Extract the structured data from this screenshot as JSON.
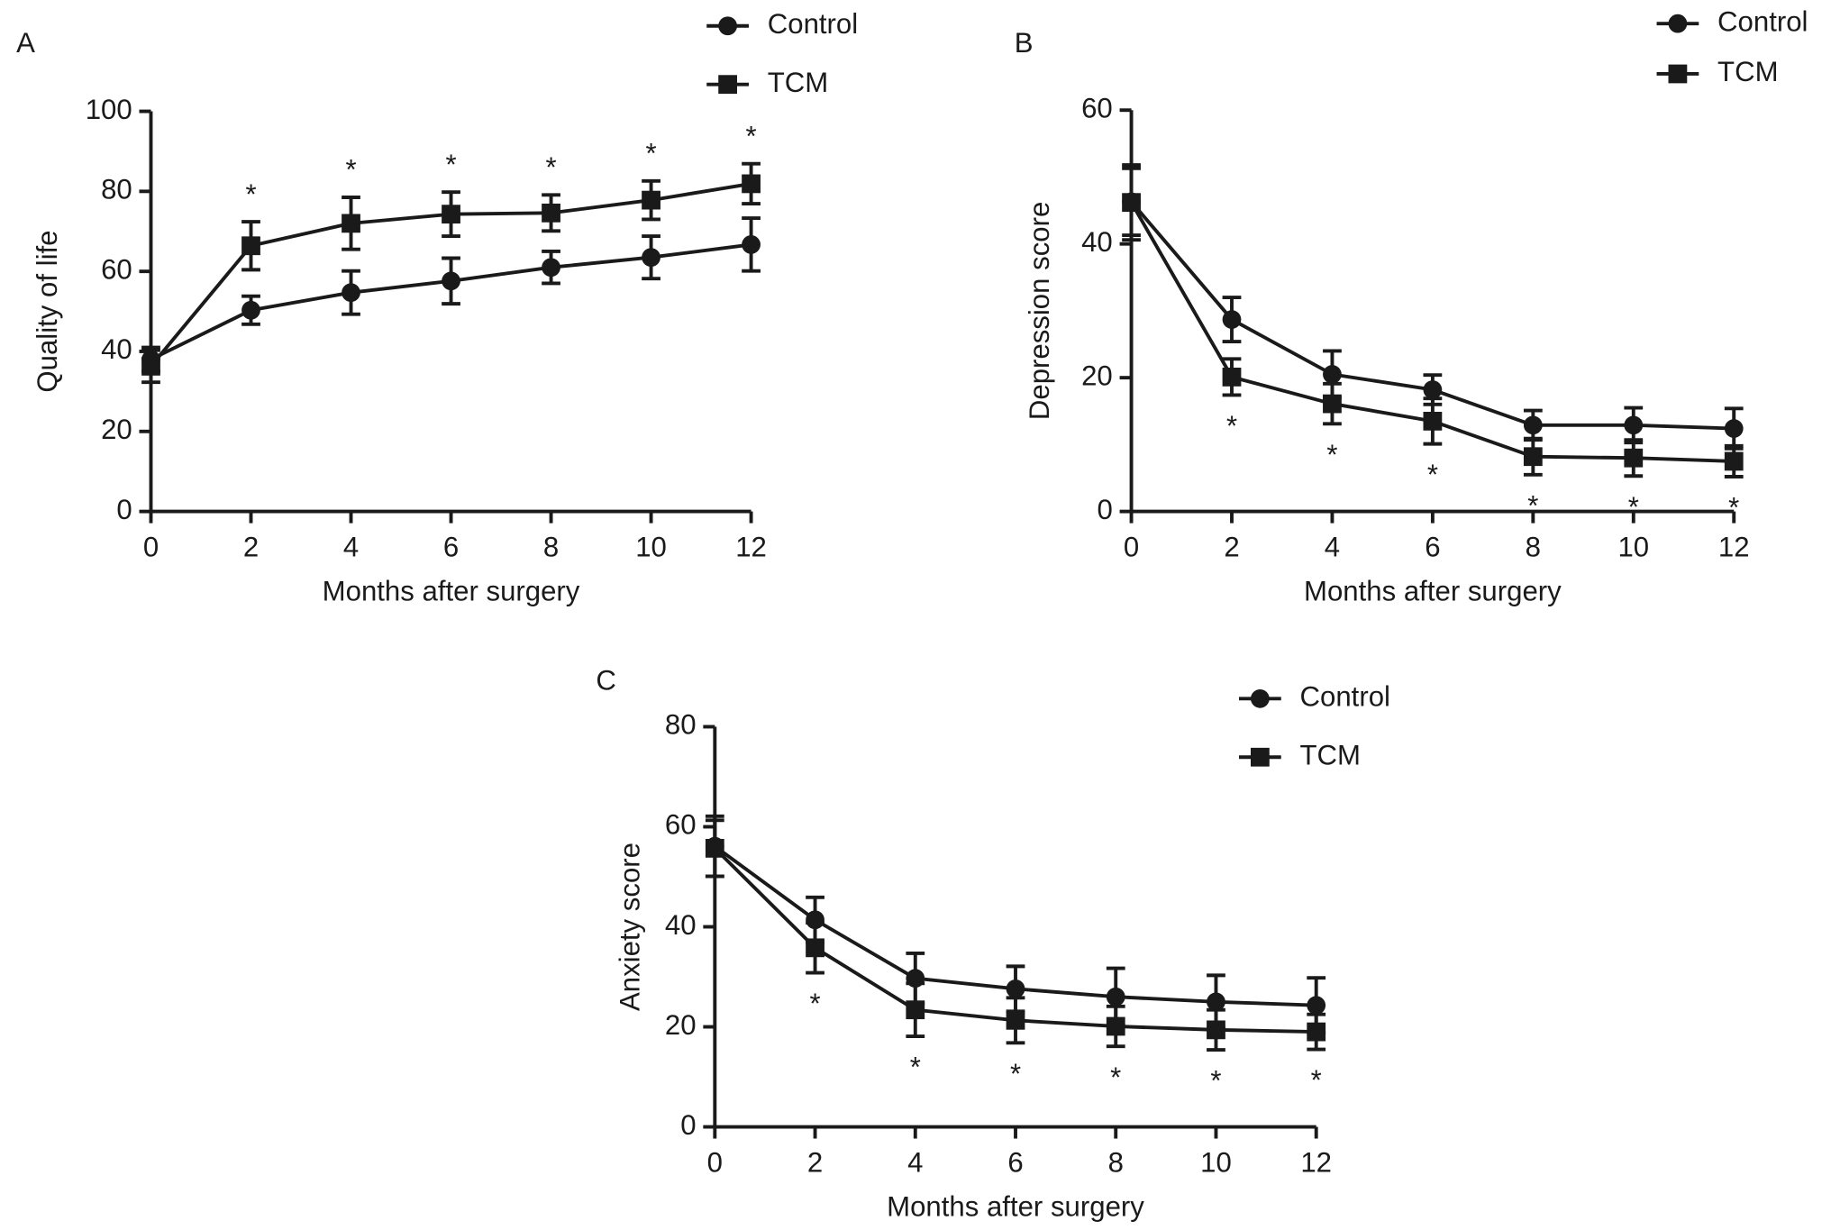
{
  "chart_data": [
    {
      "type": "line",
      "panel": "A",
      "ylabel": "Quality of life",
      "xlabel": "Months after surgery",
      "x": [
        0,
        2,
        4,
        6,
        8,
        10,
        12
      ],
      "xlim": [
        0,
        12
      ],
      "xticks": [
        0,
        2,
        4,
        6,
        8,
        10,
        12
      ],
      "ylim": [
        0,
        100
      ],
      "yticks": [
        0,
        20,
        40,
        60,
        80,
        100
      ],
      "series": [
        {
          "name": "Control",
          "color": "#1a1a1a",
          "marker": "circle",
          "values": [
            38,
            50.3,
            54.7,
            57.6,
            61,
            63.5,
            66.7
          ],
          "errors": [
            3,
            3.5,
            5.4,
            5.7,
            4,
            5.3,
            6.6
          ]
        },
        {
          "name": "TCM",
          "color": "#1a1a1a",
          "marker": "square",
          "values": [
            36.3,
            66.4,
            72,
            74.3,
            74.6,
            77.8,
            81.9
          ],
          "errors": [
            4,
            6,
            6.5,
            5.5,
            4.5,
            4.8,
            5
          ]
        }
      ],
      "annotations": [
        {
          "x": 2,
          "text": "*"
        },
        {
          "x": 4,
          "text": "*"
        },
        {
          "x": 6,
          "text": "*"
        },
        {
          "x": 8,
          "text": "*"
        },
        {
          "x": 10,
          "text": "*"
        },
        {
          "x": 12,
          "text": "*"
        }
      ]
    },
    {
      "type": "line",
      "panel": "B",
      "ylabel": "Depression score",
      "xlabel": "Months after surgery",
      "x": [
        0,
        2,
        4,
        6,
        8,
        10,
        12
      ],
      "xlim": [
        0,
        12
      ],
      "xticks": [
        0,
        2,
        4,
        6,
        8,
        10,
        12
      ],
      "ylim": [
        0,
        60
      ],
      "yticks": [
        0,
        20,
        40,
        60
      ],
      "series": [
        {
          "name": "Control",
          "color": "#1a1a1a",
          "marker": "circle",
          "values": [
            46.3,
            28.7,
            20.5,
            18.2,
            12.9,
            12.9,
            12.4
          ],
          "errors": [
            5,
            3.3,
            3.5,
            2.2,
            2.2,
            2.6,
            3
          ]
        },
        {
          "name": "TCM",
          "color": "#1a1a1a",
          "marker": "square",
          "values": [
            46.2,
            20.1,
            16.1,
            13.5,
            8.2,
            8,
            7.5
          ],
          "errors": [
            5.6,
            2.7,
            3,
            3.4,
            2.7,
            2.7,
            2.3
          ]
        }
      ],
      "annotations": [
        {
          "x": 2,
          "text": "*"
        },
        {
          "x": 4,
          "text": "*"
        },
        {
          "x": 6,
          "text": "*"
        },
        {
          "x": 8,
          "text": "*"
        },
        {
          "x": 10,
          "text": "*"
        },
        {
          "x": 12,
          "text": "*"
        }
      ]
    },
    {
      "type": "line",
      "panel": "C",
      "ylabel": "Anxiety score",
      "xlabel": "Months after surgery",
      "x": [
        0,
        2,
        4,
        6,
        8,
        10,
        12
      ],
      "xlim": [
        0,
        12
      ],
      "xticks": [
        0,
        2,
        4,
        6,
        8,
        10,
        12
      ],
      "ylim": [
        0,
        80
      ],
      "yticks": [
        0,
        20,
        40,
        60,
        80
      ],
      "series": [
        {
          "name": "Control",
          "color": "#1a1a1a",
          "marker": "circle",
          "values": [
            56.1,
            41.4,
            29.7,
            27.6,
            26,
            25,
            24.3
          ],
          "errors": [
            6,
            4.5,
            5,
            4.5,
            5.7,
            5.3,
            5.5
          ]
        },
        {
          "name": "TCM",
          "color": "#1a1a1a",
          "marker": "square",
          "values": [
            55.7,
            35.8,
            23.4,
            21.3,
            20.1,
            19.4,
            19
          ],
          "errors": [
            5.6,
            5,
            5.3,
            4.5,
            4,
            4,
            3.5
          ]
        }
      ],
      "annotations": [
        {
          "x": 2,
          "text": "*"
        },
        {
          "x": 4,
          "text": "*"
        },
        {
          "x": 6,
          "text": "*"
        },
        {
          "x": 8,
          "text": "*"
        },
        {
          "x": 10,
          "text": "*"
        },
        {
          "x": 12,
          "text": "*"
        }
      ]
    }
  ]
}
